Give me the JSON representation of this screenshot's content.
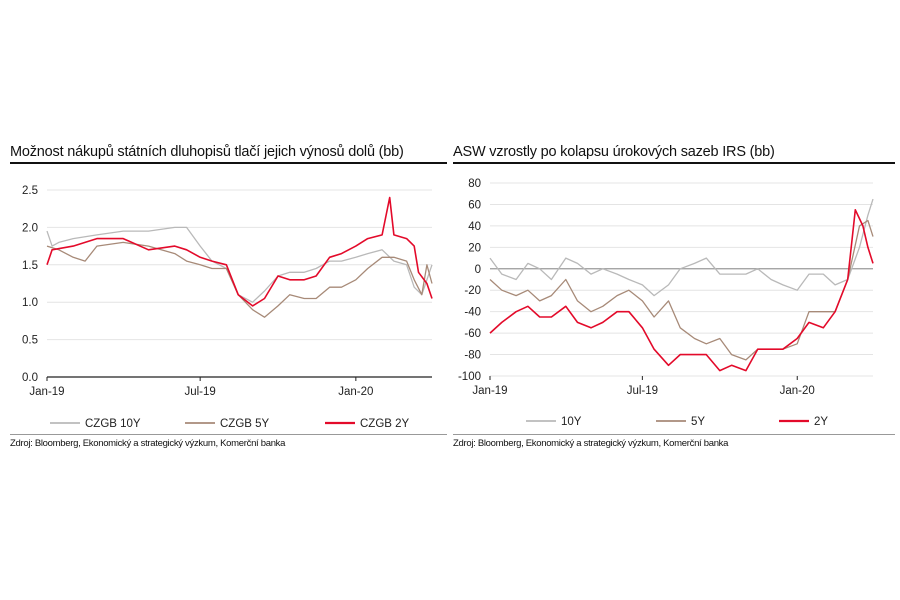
{
  "chart_data": [
    {
      "type": "line",
      "title": "Možnost nákupů státních dluhopisů tlačí jejich výnosů dolů (bb)",
      "source": "Zdroj: Bloomberg, Ekonomický a strategický výzkum, Komerční banka",
      "xlabel": "",
      "ylabel": "",
      "ylim": [
        0,
        2.5
      ],
      "yticks": [
        0.0,
        0.5,
        1.0,
        1.5,
        2.0,
        2.5
      ],
      "ytick_labels": [
        "0.0",
        "0.5",
        "1.0",
        "1.5",
        "2.0",
        "2.5"
      ],
      "xlim": [
        "2019-01-01",
        "2020-03-31"
      ],
      "xticks": [
        "2019-01-01",
        "2019-07-01",
        "2020-01-01"
      ],
      "xtick_labels": [
        "Jan-19",
        "Jul-19",
        "Jan-20"
      ],
      "grid": "horizontal",
      "legend": "bottom",
      "series": [
        {
          "name": "CZGB 10Y",
          "color": "#b9b9b9",
          "x": [
            "2019-01-01",
            "2019-01-07",
            "2019-01-15",
            "2019-02-01",
            "2019-03-01",
            "2019-04-01",
            "2019-05-01",
            "2019-06-01",
            "2019-06-15",
            "2019-07-01",
            "2019-07-15",
            "2019-08-01",
            "2019-08-15",
            "2019-09-01",
            "2019-09-15",
            "2019-10-01",
            "2019-10-15",
            "2019-11-01",
            "2019-11-15",
            "2019-12-01",
            "2019-12-15",
            "2020-01-01",
            "2020-01-15",
            "2020-02-01",
            "2020-02-15",
            "2020-03-01",
            "2020-03-10",
            "2020-03-19",
            "2020-03-31"
          ],
          "y": [
            1.95,
            1.75,
            1.8,
            1.85,
            1.9,
            1.95,
            1.95,
            2.0,
            2.0,
            1.75,
            1.55,
            1.45,
            1.1,
            1.0,
            1.15,
            1.35,
            1.4,
            1.4,
            1.45,
            1.55,
            1.55,
            1.6,
            1.65,
            1.7,
            1.55,
            1.5,
            1.2,
            1.1,
            1.5
          ]
        },
        {
          "name": "CZGB 5Y",
          "color": "#a78a78",
          "x": [
            "2019-01-01",
            "2019-01-15",
            "2019-02-01",
            "2019-02-15",
            "2019-03-01",
            "2019-04-01",
            "2019-05-01",
            "2019-06-01",
            "2019-06-15",
            "2019-07-01",
            "2019-07-15",
            "2019-08-01",
            "2019-08-15",
            "2019-09-01",
            "2019-09-15",
            "2019-10-01",
            "2019-10-15",
            "2019-11-01",
            "2019-11-15",
            "2019-12-01",
            "2019-12-15",
            "2020-01-01",
            "2020-01-15",
            "2020-02-01",
            "2020-02-15",
            "2020-03-01",
            "2020-03-10",
            "2020-03-19",
            "2020-03-25",
            "2020-03-31"
          ],
          "y": [
            1.75,
            1.7,
            1.6,
            1.55,
            1.75,
            1.8,
            1.75,
            1.65,
            1.55,
            1.5,
            1.45,
            1.45,
            1.1,
            0.9,
            0.8,
            0.95,
            1.1,
            1.05,
            1.05,
            1.2,
            1.2,
            1.3,
            1.45,
            1.6,
            1.6,
            1.55,
            1.3,
            1.1,
            1.5,
            1.25
          ]
        },
        {
          "name": "CZGB 2Y",
          "color": "#e30a2a",
          "x": [
            "2019-01-01",
            "2019-01-07",
            "2019-02-01",
            "2019-03-01",
            "2019-04-01",
            "2019-05-01",
            "2019-06-01",
            "2019-06-15",
            "2019-07-01",
            "2019-07-15",
            "2019-08-01",
            "2019-08-15",
            "2019-09-01",
            "2019-09-15",
            "2019-10-01",
            "2019-10-15",
            "2019-11-01",
            "2019-11-15",
            "2019-12-01",
            "2019-12-15",
            "2020-01-01",
            "2020-01-15",
            "2020-02-01",
            "2020-02-10",
            "2020-02-15",
            "2020-03-01",
            "2020-03-10",
            "2020-03-15",
            "2020-03-25",
            "2020-03-31"
          ],
          "y": [
            1.5,
            1.7,
            1.75,
            1.85,
            1.85,
            1.7,
            1.75,
            1.7,
            1.6,
            1.55,
            1.5,
            1.1,
            0.95,
            1.05,
            1.35,
            1.3,
            1.3,
            1.35,
            1.6,
            1.65,
            1.75,
            1.85,
            1.9,
            2.4,
            1.9,
            1.85,
            1.75,
            1.4,
            1.25,
            1.05
          ]
        }
      ]
    },
    {
      "type": "line",
      "title": "ASW vzrostly po kolapsu úrokových sazeb IRS (bb)",
      "source": "Zdroj: Bloomberg, Ekonomický a strategický výzkum, Komerční banka",
      "xlabel": "",
      "ylabel": "",
      "ylim": [
        -100,
        80
      ],
      "yticks": [
        -100,
        -80,
        -60,
        -40,
        -20,
        0,
        20,
        40,
        60,
        80
      ],
      "ytick_labels": [
        "-100",
        "-80",
        "-60",
        "-40",
        "-20",
        "0",
        "20",
        "40",
        "60",
        "80"
      ],
      "xlim": [
        "2019-01-01",
        "2020-03-31"
      ],
      "xticks": [
        "2019-01-01",
        "2019-07-01",
        "2020-01-01"
      ],
      "xtick_labels": [
        "Jan-19",
        "Jul-19",
        "Jan-20"
      ],
      "grid": "horizontal",
      "legend": "bottom",
      "series": [
        {
          "name": "10Y",
          "color": "#b9b9b9",
          "x": [
            "2019-01-01",
            "2019-01-15",
            "2019-02-01",
            "2019-02-15",
            "2019-03-01",
            "2019-03-15",
            "2019-04-01",
            "2019-04-15",
            "2019-05-01",
            "2019-05-15",
            "2019-06-01",
            "2019-06-15",
            "2019-07-01",
            "2019-07-15",
            "2019-08-01",
            "2019-08-15",
            "2019-09-01",
            "2019-09-15",
            "2019-10-01",
            "2019-10-15",
            "2019-11-01",
            "2019-11-15",
            "2019-12-01",
            "2019-12-15",
            "2020-01-01",
            "2020-01-15",
            "2020-02-01",
            "2020-02-15",
            "2020-03-01",
            "2020-03-15",
            "2020-03-25",
            "2020-03-31"
          ],
          "y": [
            10,
            -5,
            -10,
            5,
            0,
            -10,
            10,
            5,
            -5,
            0,
            -5,
            -10,
            -15,
            -25,
            -15,
            0,
            5,
            10,
            -5,
            -5,
            -5,
            0,
            -10,
            -15,
            -20,
            -5,
            -5,
            -15,
            -10,
            20,
            50,
            65
          ]
        },
        {
          "name": "5Y",
          "color": "#a78a78",
          "x": [
            "2019-01-01",
            "2019-01-15",
            "2019-02-01",
            "2019-02-15",
            "2019-03-01",
            "2019-03-15",
            "2019-04-01",
            "2019-04-15",
            "2019-05-01",
            "2019-05-15",
            "2019-06-01",
            "2019-06-15",
            "2019-07-01",
            "2019-07-15",
            "2019-08-01",
            "2019-08-15",
            "2019-09-01",
            "2019-09-15",
            "2019-10-01",
            "2019-10-15",
            "2019-11-01",
            "2019-11-15",
            "2019-12-01",
            "2019-12-15",
            "2020-01-01",
            "2020-01-15",
            "2020-02-01",
            "2020-02-15",
            "2020-03-01",
            "2020-03-15",
            "2020-03-25",
            "2020-03-31"
          ],
          "y": [
            -10,
            -20,
            -25,
            -20,
            -30,
            -25,
            -10,
            -30,
            -40,
            -35,
            -25,
            -20,
            -30,
            -45,
            -30,
            -55,
            -65,
            -70,
            -65,
            -80,
            -85,
            -75,
            -75,
            -75,
            -70,
            -40,
            -40,
            -40,
            -10,
            40,
            45,
            30
          ]
        },
        {
          "name": "2Y",
          "color": "#e30a2a",
          "x": [
            "2019-01-01",
            "2019-01-15",
            "2019-02-01",
            "2019-02-15",
            "2019-03-01",
            "2019-03-15",
            "2019-04-01",
            "2019-04-15",
            "2019-05-01",
            "2019-05-15",
            "2019-06-01",
            "2019-06-15",
            "2019-07-01",
            "2019-07-15",
            "2019-08-01",
            "2019-08-15",
            "2019-09-01",
            "2019-09-15",
            "2019-10-01",
            "2019-10-15",
            "2019-11-01",
            "2019-11-15",
            "2019-12-01",
            "2019-12-15",
            "2020-01-01",
            "2020-01-15",
            "2020-02-01",
            "2020-02-15",
            "2020-03-01",
            "2020-03-10",
            "2020-03-19",
            "2020-03-25",
            "2020-03-31"
          ],
          "y": [
            -60,
            -50,
            -40,
            -35,
            -45,
            -45,
            -35,
            -50,
            -55,
            -50,
            -40,
            -40,
            -55,
            -75,
            -90,
            -80,
            -80,
            -80,
            -95,
            -90,
            -95,
            -75,
            -75,
            -75,
            -65,
            -50,
            -55,
            -40,
            -10,
            55,
            40,
            20,
            5
          ]
        }
      ]
    }
  ]
}
